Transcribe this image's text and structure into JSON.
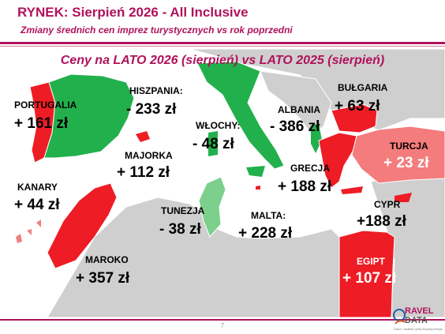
{
  "header": {
    "title": "RYNEK: Sierpień 2026 - All Inclusive",
    "subtitle": "Zmiany średnich cen imprez turystycznych vs rok poprzedni"
  },
  "map": {
    "title": "Ceny na LATO 2026 (sierpień) vs  LATO 2025 (sierpień)",
    "colors": {
      "increase": "#ee1c25",
      "decrease": "#22b04c",
      "land": "#cfcfcf",
      "sea": "#ffffff"
    },
    "countries": [
      {
        "name": "PORTUGALIA",
        "change": "+ 161 zł",
        "color": "red"
      },
      {
        "name": "HISZPANIA:",
        "change": "- 233 zł",
        "color": "green"
      },
      {
        "name": "MAJORKA",
        "change": "+ 112 zł",
        "color": "red"
      },
      {
        "name": "KANARY",
        "change": "+ 44 zł",
        "color": "red"
      },
      {
        "name": "MAROKO",
        "change": "+ 357 zł",
        "color": "red"
      },
      {
        "name": "WŁOCHY:",
        "change": "- 48 zł",
        "color": "green"
      },
      {
        "name": "TUNEZJA",
        "change": "- 38 zł",
        "color": "green"
      },
      {
        "name": "MALTA:",
        "change": "+ 228 zł",
        "color": "red"
      },
      {
        "name": "ALBANIA",
        "change": "- 386 zł",
        "color": "green"
      },
      {
        "name": "GRECJA",
        "change": "+ 188 zł",
        "color": "red"
      },
      {
        "name": "BUŁGARIA",
        "change": "+ 63 zł",
        "color": "red"
      },
      {
        "name": "TURCJA",
        "change": "+ 23 zł",
        "color": "red"
      },
      {
        "name": "CYPR",
        "change": "+188 zł",
        "color": "red"
      },
      {
        "name": "EGIPT",
        "change": "+ 107 zł",
        "color": "red"
      }
    ]
  },
  "footer": {
    "page_number": "7",
    "logo_line1": "RAVEL",
    "logo_line2": "DATA",
    "logo_tagline": "Dane i analizy rynku turystycznego"
  }
}
